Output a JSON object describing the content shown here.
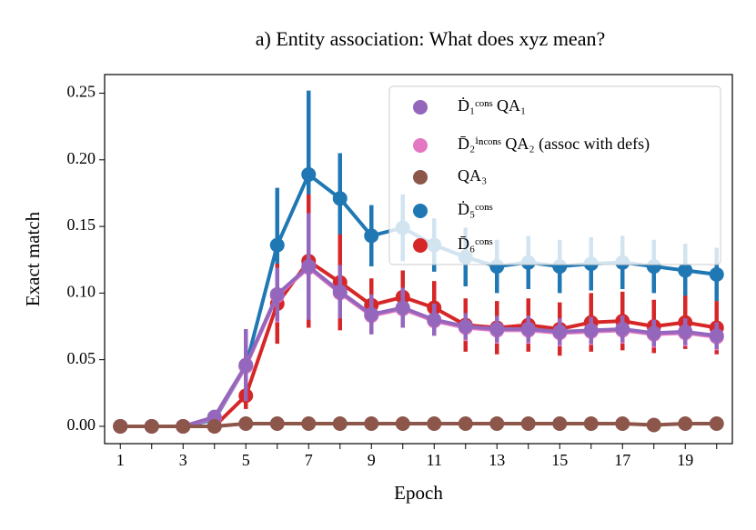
{
  "chart_data": {
    "type": "line",
    "title": "a) Entity association: What does xyz mean?",
    "xlabel": "Epoch",
    "ylabel": "Exact match",
    "x": [
      1,
      2,
      3,
      4,
      5,
      6,
      7,
      8,
      9,
      10,
      11,
      12,
      13,
      14,
      15,
      16,
      17,
      18,
      19,
      20
    ],
    "xlim": [
      0.5,
      20.5
    ],
    "xticks": [
      1,
      3,
      5,
      7,
      9,
      11,
      13,
      15,
      17,
      19
    ],
    "xminor_ticks": [
      2,
      4,
      6,
      8,
      10,
      12,
      14,
      16,
      18,
      20
    ],
    "ylim": [
      -0.013,
      0.264
    ],
    "yticks": [
      {
        "value": 0,
        "label": "0.00"
      },
      {
        "value": 0.05,
        "label": "0.05"
      },
      {
        "value": 0.1,
        "label": "0.10"
      },
      {
        "value": 0.15,
        "label": "0.15"
      },
      {
        "value": 0.2,
        "label": "0.20"
      },
      {
        "value": 0.25,
        "label": "0.25"
      }
    ],
    "legend": "upper right",
    "series": [
      {
        "name": "Ḋ₁ᶜᵒⁿˢ QA₁",
        "color": "#9467bd",
        "values": [
          0,
          0,
          0,
          0.007,
          0.046,
          0.099,
          0.12,
          0.101,
          0.084,
          0.089,
          0.08,
          0.075,
          0.073,
          0.073,
          0.071,
          0.072,
          0.073,
          0.07,
          0.071,
          0.068
        ],
        "errors": [
          0,
          0,
          0,
          0.003,
          0.027,
          0.02,
          0.04,
          0.02,
          0.015,
          0.015,
          0.012,
          0.01,
          0.01,
          0.01,
          0.01,
          0.01,
          0.01,
          0.01,
          0.01,
          0.01
        ]
      },
      {
        "name": "D̄₂ⁱⁿᶜᵒⁿˢ QA₂ (assoc with defs)",
        "color": "#e377c2",
        "values": [
          0,
          0,
          0,
          0.006,
          0.045,
          0.098,
          0.119,
          0.1,
          0.083,
          0.088,
          0.079,
          0.074,
          0.072,
          0.072,
          0.07,
          0.071,
          0.072,
          0.069,
          0.07,
          0.067
        ],
        "errors": [
          0,
          0,
          0,
          0.003,
          0.025,
          0.02,
          0.035,
          0.018,
          0.014,
          0.014,
          0.011,
          0.01,
          0.01,
          0.01,
          0.01,
          0.01,
          0.01,
          0.01,
          0.01,
          0.01
        ]
      },
      {
        "name": "QA₃",
        "color": "#8c564b",
        "values": [
          0,
          0,
          0,
          0,
          0.002,
          0.002,
          0.002,
          0.002,
          0.002,
          0.002,
          0.002,
          0.002,
          0.002,
          0.002,
          0.002,
          0.002,
          0.002,
          0.001,
          0.002,
          0.002
        ],
        "errors": [
          0,
          0,
          0,
          0,
          0,
          0,
          0,
          0,
          0,
          0,
          0,
          0,
          0,
          0,
          0,
          0,
          0,
          0,
          0,
          0
        ]
      },
      {
        "name": "Ḋ₅ᶜᵒⁿˢ",
        "color": "#1f77b4",
        "values": [
          0,
          0,
          0,
          0.005,
          0.045,
          0.136,
          0.189,
          0.171,
          0.143,
          0.149,
          0.136,
          0.127,
          0.12,
          0.123,
          0.12,
          0.122,
          0.123,
          0.12,
          0.117,
          0.114
        ],
        "errors": [
          0,
          0,
          0,
          0.003,
          0.02,
          0.043,
          0.063,
          0.034,
          0.023,
          0.025,
          0.02,
          0.022,
          0.02,
          0.02,
          0.02,
          0.02,
          0.02,
          0.02,
          0.02,
          0.02
        ]
      },
      {
        "name": "D̄₆ᶜᵒⁿˢ",
        "color": "#d62728",
        "values": [
          0,
          0,
          0,
          0,
          0.023,
          0.092,
          0.124,
          0.108,
          0.091,
          0.097,
          0.089,
          0.076,
          0.074,
          0.076,
          0.073,
          0.078,
          0.079,
          0.075,
          0.078,
          0.074
        ],
        "errors": [
          0,
          0,
          0,
          0,
          0.01,
          0.03,
          0.05,
          0.036,
          0.02,
          0.02,
          0.02,
          0.02,
          0.02,
          0.02,
          0.02,
          0.022,
          0.022,
          0.02,
          0.02,
          0.02
        ]
      }
    ]
  }
}
